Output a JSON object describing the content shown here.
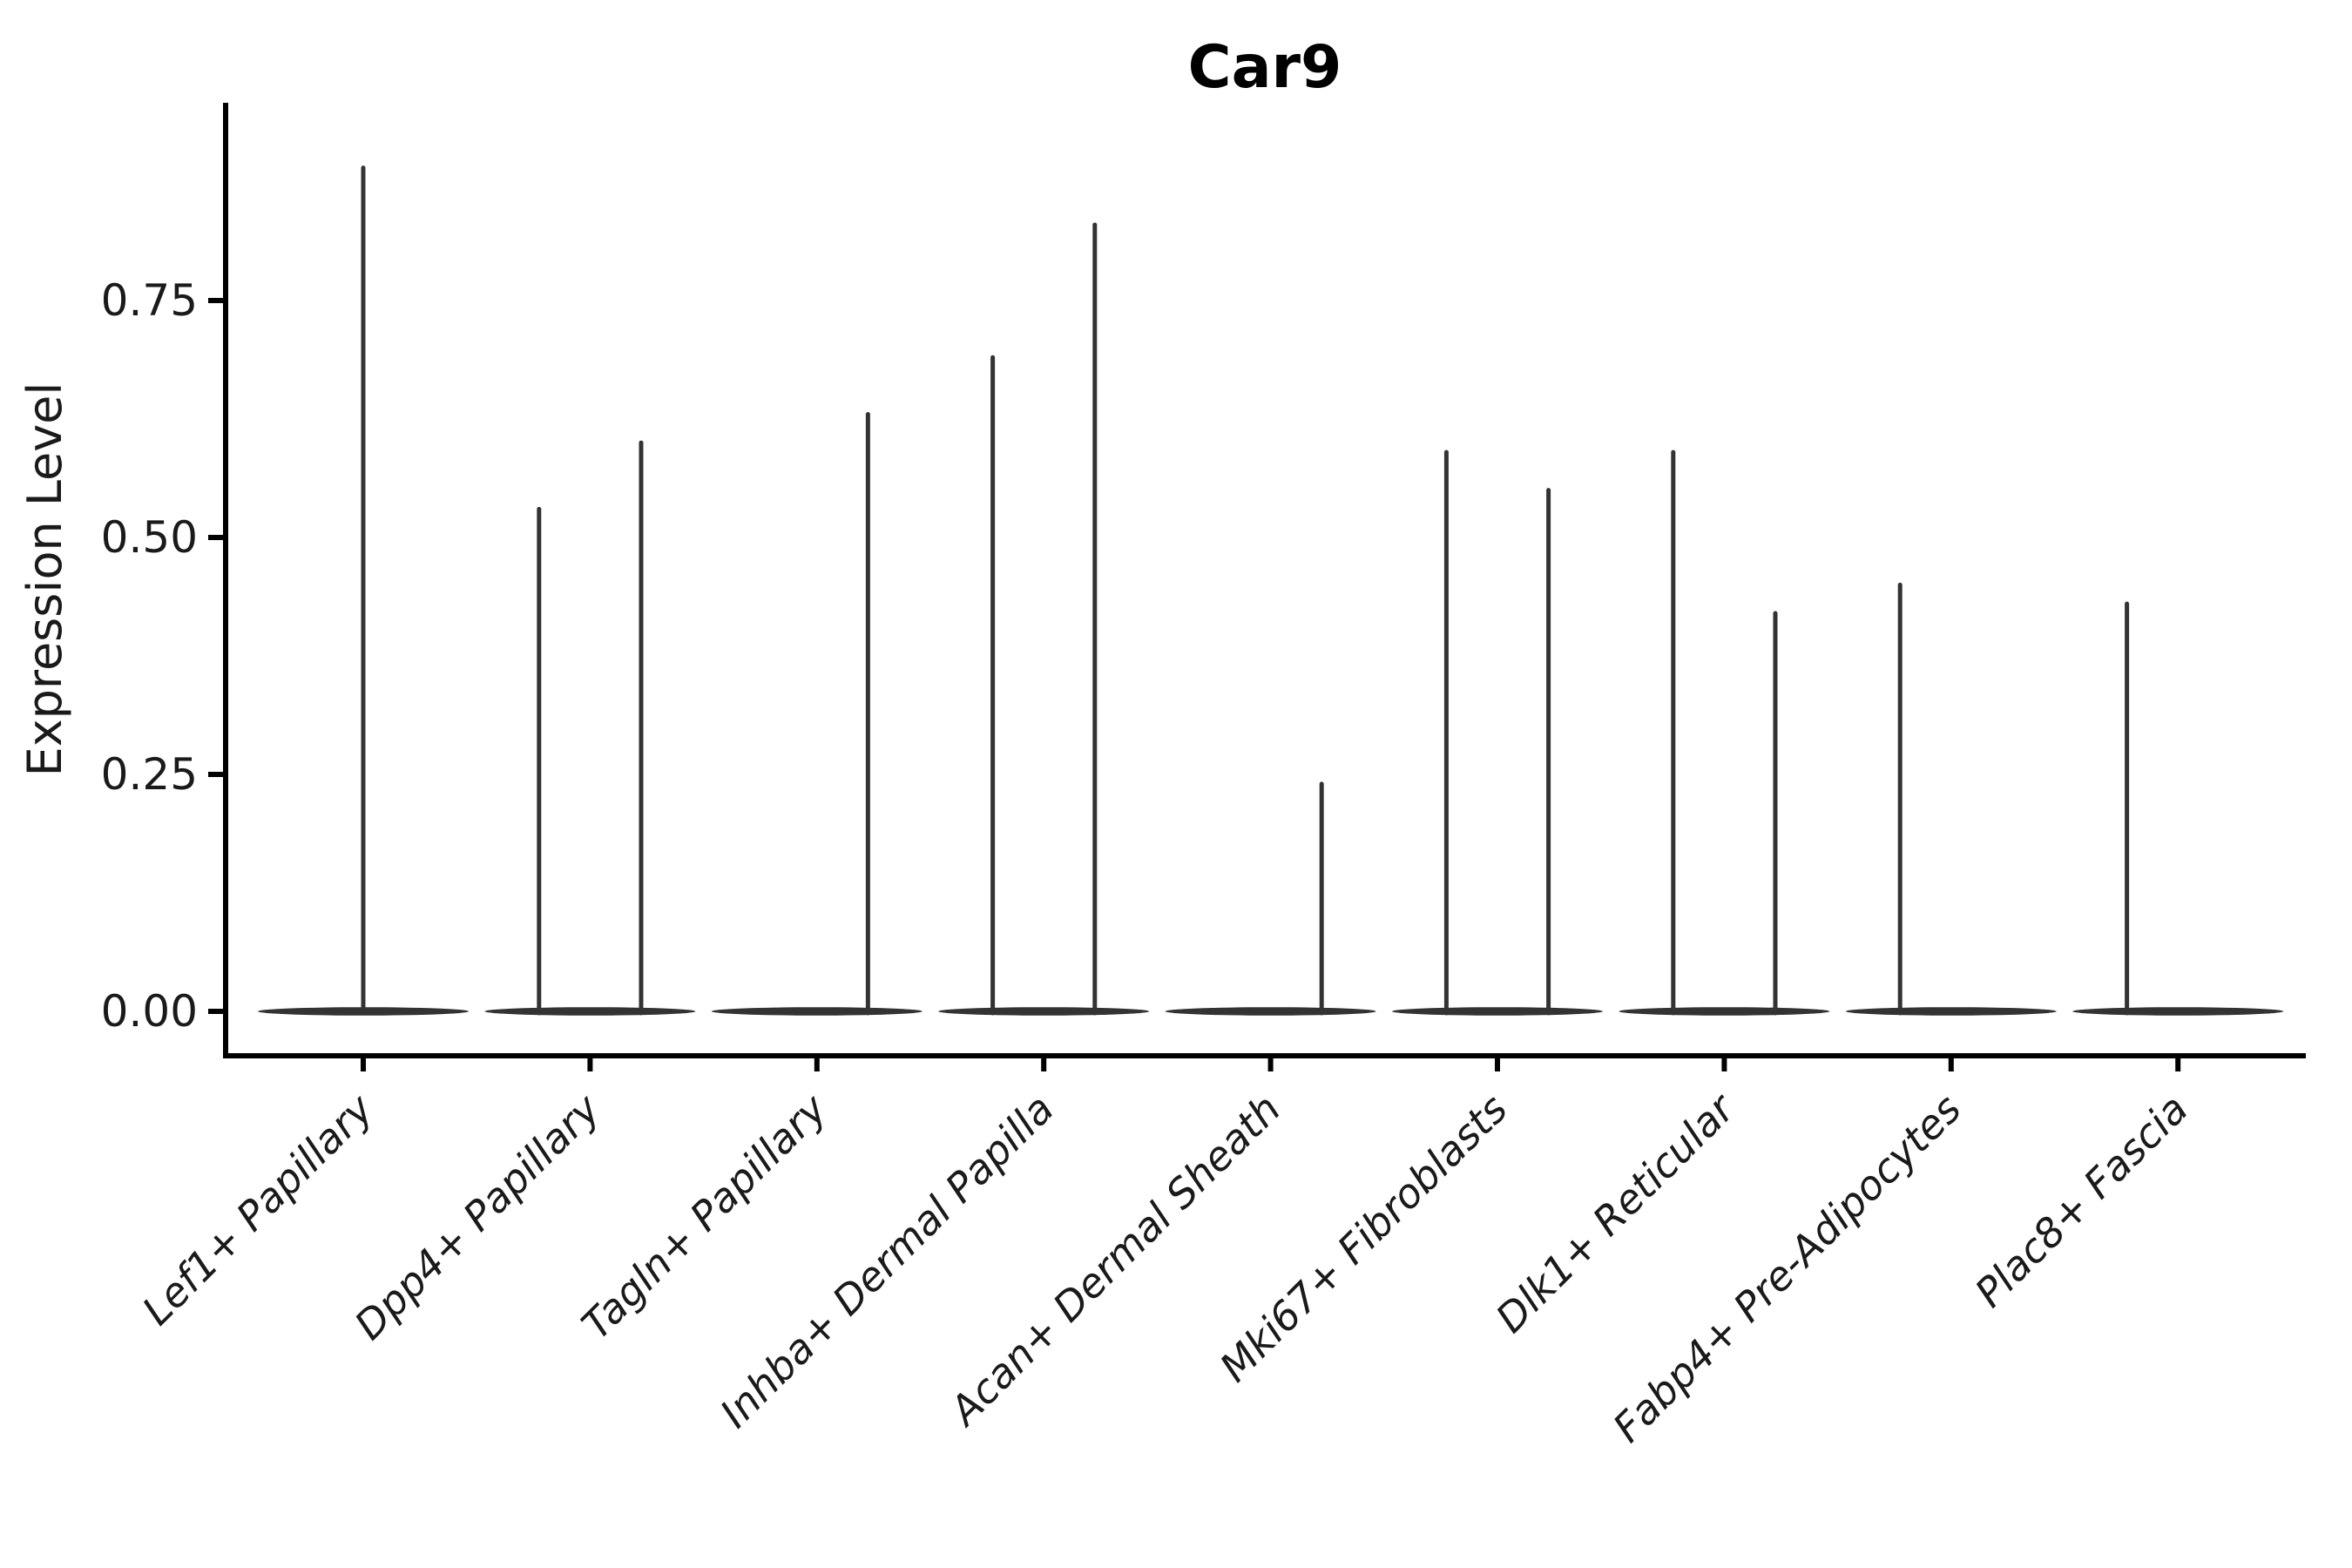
{
  "page": {
    "background": "#ffffff"
  },
  "chart_data": {
    "type": "violin",
    "title": "Car9",
    "ylabel": "Expression Level",
    "xlabel": "",
    "ylim": [
      0,
      0.96
    ],
    "grid": false,
    "legend": "none",
    "yticks": [
      {
        "value": 0.0,
        "label": "0.00"
      },
      {
        "value": 0.25,
        "label": "0.25"
      },
      {
        "value": 0.5,
        "label": "0.50"
      },
      {
        "value": 0.75,
        "label": "0.75"
      }
    ],
    "categories": [
      "Lef1+ Papillary",
      "Dpp4+ Papillary",
      "Tagln+ Papillary",
      "Inhba+ Dermal Papilla",
      "Acan+ Dermal Sheath",
      "Mki67+ Fibroblasts",
      "Dlk1+ Reticular",
      "Fabp4+ Pre-Adipocytes",
      "Plac8+ Fascia"
    ],
    "violins": [
      {
        "category": "Lef1+ Papillary",
        "spikes": [
          {
            "position": "center",
            "max": 0.89
          }
        ]
      },
      {
        "category": "Dpp4+ Papillary",
        "spikes": [
          {
            "position": "left",
            "max": 0.53
          },
          {
            "position": "right",
            "max": 0.6
          }
        ]
      },
      {
        "category": "Tagln+ Papillary",
        "spikes": [
          {
            "position": "right",
            "max": 0.63
          }
        ]
      },
      {
        "category": "Inhba+ Dermal Papilla",
        "spikes": [
          {
            "position": "left",
            "max": 0.69
          },
          {
            "position": "right",
            "max": 0.83
          }
        ]
      },
      {
        "category": "Acan+ Dermal Sheath",
        "spikes": [
          {
            "position": "right",
            "max": 0.24
          }
        ]
      },
      {
        "category": "Mki67+ Fibroblasts",
        "spikes": [
          {
            "position": "left",
            "max": 0.59
          },
          {
            "position": "right",
            "max": 0.55
          }
        ]
      },
      {
        "category": "Dlk1+ Reticular",
        "spikes": [
          {
            "position": "left",
            "max": 0.59
          },
          {
            "position": "right",
            "max": 0.42
          }
        ]
      },
      {
        "category": "Fabp4+ Pre-Adipocytes",
        "spikes": [
          {
            "position": "left",
            "max": 0.45
          }
        ]
      },
      {
        "category": "Plac8+ Fascia",
        "spikes": [
          {
            "position": "left",
            "max": 0.43
          }
        ]
      }
    ],
    "style": {
      "violin_color": "#333333",
      "axis_color": "#000000",
      "text_color": "#1a1a1a"
    }
  }
}
